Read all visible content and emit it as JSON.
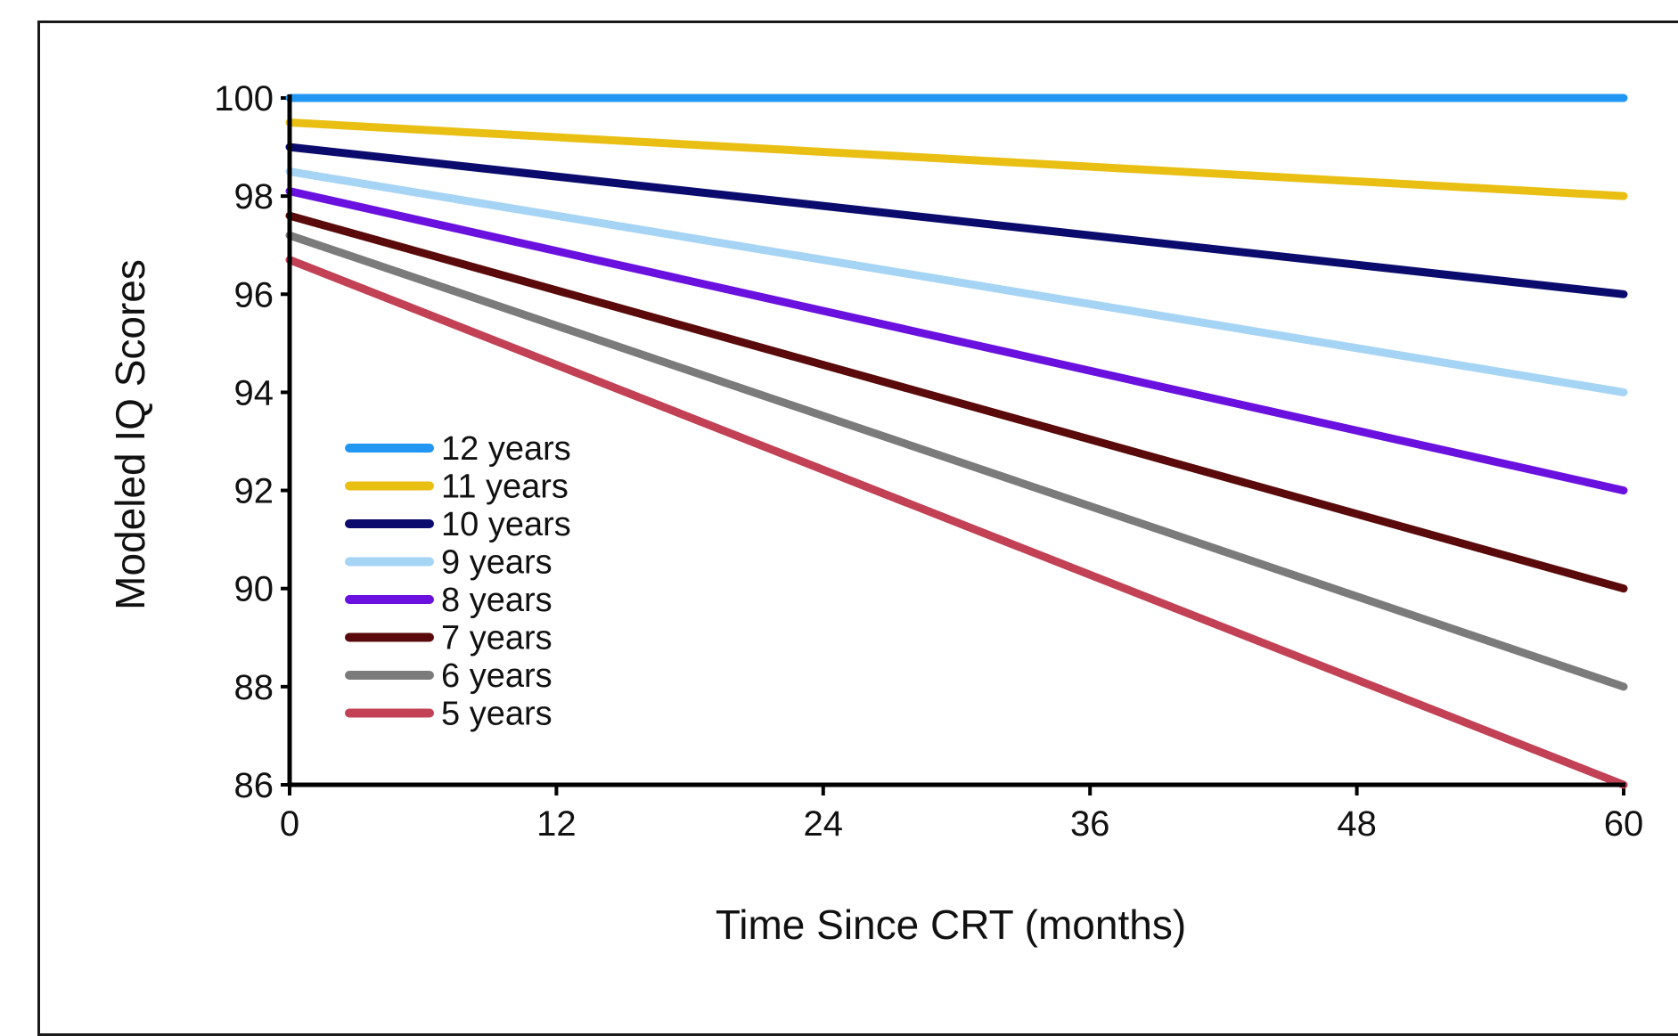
{
  "chart_data": {
    "type": "line",
    "xlabel": "Time Since CRT (months)",
    "ylabel": "Modeled IQ Scores",
    "xlim": [
      0,
      60
    ],
    "ylim": [
      86,
      100
    ],
    "x_ticks": [
      0,
      12,
      24,
      36,
      48,
      60
    ],
    "y_ticks": [
      86,
      88,
      90,
      92,
      94,
      96,
      98,
      100
    ],
    "x": [
      0,
      60
    ],
    "legend_position": "lower-left",
    "series": [
      {
        "name": "12 years",
        "color": "#2196f3",
        "values": [
          100.0,
          100.0
        ]
      },
      {
        "name": "11 years",
        "color": "#e8bf12",
        "values": [
          99.5,
          98.0
        ]
      },
      {
        "name": "10 years",
        "color": "#0b0b6e",
        "values": [
          99.0,
          96.0
        ]
      },
      {
        "name": "9 years",
        "color": "#a6d4f5",
        "values": [
          98.5,
          94.0
        ]
      },
      {
        "name": "8 years",
        "color": "#6a11e0",
        "values": [
          98.1,
          92.0
        ]
      },
      {
        "name": "7 years",
        "color": "#5a0a0a",
        "values": [
          97.6,
          90.0
        ]
      },
      {
        "name": "6 years",
        "color": "#7b7b7b",
        "values": [
          97.2,
          88.0
        ]
      },
      {
        "name": "5 years",
        "color": "#c24155",
        "values": [
          96.7,
          86.0
        ]
      }
    ]
  }
}
